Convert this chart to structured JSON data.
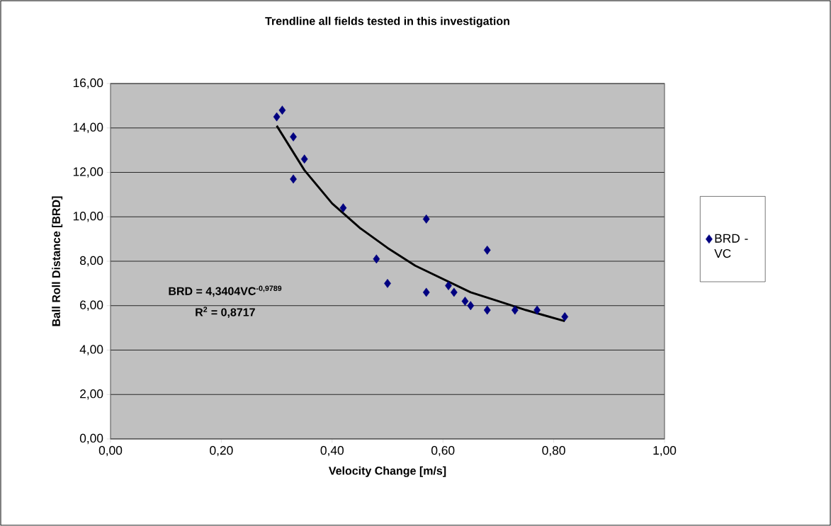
{
  "chart_data": {
    "type": "scatter",
    "title": "Trendline all fields tested in this investigation",
    "xlabel": "Velocity Change [m/s]",
    "ylabel": "Ball Roll Distance [BRD]",
    "xlim": [
      0,
      1
    ],
    "ylim": [
      0,
      16
    ],
    "xticks": [
      {
        "value": 0,
        "label": "0,00"
      },
      {
        "value": 0.2,
        "label": "0,20"
      },
      {
        "value": 0.4,
        "label": "0,40"
      },
      {
        "value": 0.6,
        "label": "0,60"
      },
      {
        "value": 0.8,
        "label": "0,80"
      },
      {
        "value": 1,
        "label": "1,00"
      }
    ],
    "yticks": [
      {
        "value": 0,
        "label": "0,00"
      },
      {
        "value": 2,
        "label": "2,00"
      },
      {
        "value": 4,
        "label": "4,00"
      },
      {
        "value": 6,
        "label": "6,00"
      },
      {
        "value": 8,
        "label": "8,00"
      },
      {
        "value": 10,
        "label": "10,00"
      },
      {
        "value": 12,
        "label": "12,00"
      },
      {
        "value": 14,
        "label": "14,00"
      },
      {
        "value": 16,
        "label": "16,00"
      }
    ],
    "grid": "y",
    "legend": "right",
    "marker": "diamond",
    "annotations": [
      "BRD = 4,3404VC$^{-0,9789}$",
      "R$^{2}$ = 0,8717"
    ],
    "series": [
      {
        "name": "BRD - VC",
        "color": "#000080",
        "x": [
          0.3,
          0.31,
          0.33,
          0.35,
          0.33,
          0.42,
          0.48,
          0.5,
          0.57,
          0.68,
          0.57,
          0.61,
          0.62,
          0.64,
          0.65,
          0.68,
          0.73,
          0.77,
          0.82
        ],
        "values": [
          14.5,
          14.8,
          13.6,
          12.6,
          11.7,
          10.4,
          8.1,
          7.0,
          9.9,
          8.5,
          6.6,
          6.9,
          6.6,
          6.2,
          6.0,
          5.8,
          5.8,
          5.8,
          5.5
        ]
      },
      {
        "type": "line",
        "color": "#000000",
        "marker": "none",
        "line_style": "solid",
        "x": [
          0.3,
          0.35,
          0.4,
          0.45,
          0.5,
          0.55,
          0.6,
          0.65,
          0.7,
          0.75,
          0.82
        ],
        "values": [
          14.1,
          12.1,
          10.6,
          9.5,
          8.6,
          7.8,
          7.2,
          6.6,
          6.2,
          5.8,
          5.3
        ]
      }
    ]
  }
}
